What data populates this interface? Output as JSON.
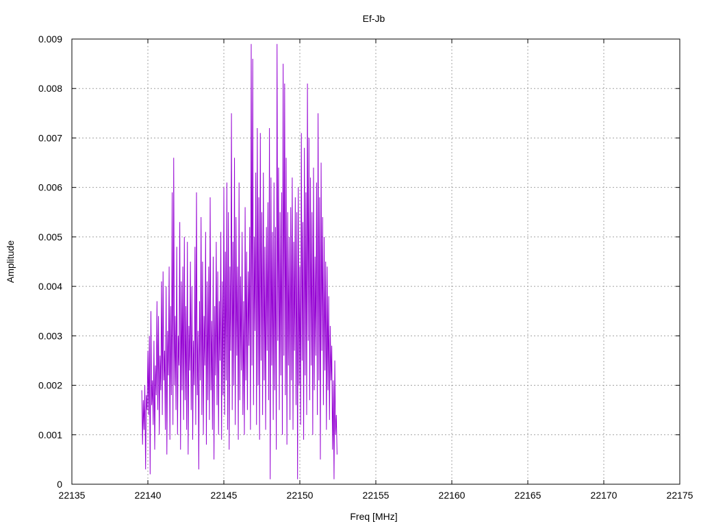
{
  "chart_data": {
    "type": "line",
    "title": "Ef-Jb",
    "xlabel": "Freq [MHz]",
    "ylabel": "Amplitude",
    "xlim": [
      22135,
      22175
    ],
    "ylim": [
      0,
      0.009
    ],
    "x_ticks": [
      "22135",
      "22140",
      "22145",
      "22150",
      "22155",
      "22160",
      "22165",
      "22170",
      "22175"
    ],
    "y_ticks": [
      "0",
      "0.001",
      "0.002",
      "0.003",
      "0.004",
      "0.005",
      "0.006",
      "0.007",
      "0.008",
      "0.009"
    ],
    "grid": true,
    "line_color": "#9400d3",
    "series": [
      {
        "x_start": 22139.6,
        "x_step": 0.05,
        "values": [
          0.0019,
          0.0008,
          0.0017,
          0.0011,
          0.002,
          0.0003,
          0.0018,
          0.0015,
          0.0027,
          0.0014,
          0.003,
          0.0002,
          0.0035,
          0.0016,
          0.0021,
          0.0012,
          0.0029,
          0.0007,
          0.0024,
          0.0018,
          0.0037,
          0.0015,
          0.0034,
          0.001,
          0.0026,
          0.0019,
          0.0041,
          0.0014,
          0.0043,
          0.0021,
          0.0027,
          0.0011,
          0.004,
          0.0006,
          0.0031,
          0.0022,
          0.0044,
          0.0009,
          0.0036,
          0.0018,
          0.0059,
          0.0012,
          0.0066,
          0.002,
          0.0034,
          0.0015,
          0.0048,
          0.001,
          0.003,
          0.0024,
          0.0053,
          0.0007,
          0.0041,
          0.0019,
          0.0044,
          0.0013,
          0.005,
          0.0017,
          0.0036,
          0.0011,
          0.0049,
          0.0006,
          0.0032,
          0.0023,
          0.0045,
          0.0015,
          0.004,
          0.0009,
          0.0029,
          0.002,
          0.0048,
          0.0012,
          0.0059,
          0.0018,
          0.0031,
          0.0003,
          0.0037,
          0.0021,
          0.0054,
          0.0014,
          0.0045,
          0.001,
          0.0034,
          0.0024,
          0.0051,
          0.0008,
          0.0041,
          0.0017,
          0.0044,
          0.0013,
          0.0058,
          0.0019,
          0.0033,
          0.0011,
          0.0046,
          0.0005,
          0.0036,
          0.0022,
          0.0049,
          0.0016,
          0.0043,
          0.001,
          0.0037,
          0.0025,
          0.0051,
          0.0009,
          0.0041,
          0.0018,
          0.006,
          0.0014,
          0.0047,
          0.0021,
          0.0061,
          0.0011,
          0.0055,
          0.0007,
          0.0044,
          0.0027,
          0.0075,
          0.0015,
          0.0049,
          0.002,
          0.0066,
          0.0012,
          0.0054,
          0.0026,
          0.0044,
          0.0009,
          0.0061,
          0.0017,
          0.0042,
          0.0023,
          0.0051,
          0.0014,
          0.0037,
          0.001,
          0.0056,
          0.0021,
          0.0047,
          0.0015,
          0.0043,
          0.0028,
          0.0052,
          0.0011,
          0.0089,
          0.0024,
          0.0086,
          0.0016,
          0.005,
          0.0031,
          0.0063,
          0.0012,
          0.0072,
          0.002,
          0.0058,
          0.0009,
          0.0071,
          0.0025,
          0.0055,
          0.0014,
          0.0063,
          0.0021,
          0.0048,
          0.0011,
          0.0052,
          0.0027,
          0.0057,
          0.0017,
          0.0072,
          0.0001,
          0.0062,
          0.0024,
          0.0051,
          0.0013,
          0.0061,
          0.0019,
          0.0052,
          0.0007,
          0.0089,
          0.0029,
          0.0064,
          0.0015,
          0.0055,
          0.0022,
          0.0059,
          0.001,
          0.0085,
          0.0026,
          0.0081,
          0.0018,
          0.0066,
          0.0008,
          0.0055,
          0.0024,
          0.005,
          0.0013,
          0.0056,
          0.0021,
          0.0062,
          0.0011,
          0.0049,
          0.0027,
          0.0058,
          0.0016,
          0.0055,
          0.0001,
          0.006,
          0.002,
          0.0044,
          0.0012,
          0.0071,
          0.0025,
          0.0053,
          0.0009,
          0.0068,
          0.0022,
          0.0059,
          0.0014,
          0.0081,
          0.0029,
          0.007,
          0.0017,
          0.0062,
          0.0024,
          0.0055,
          0.001,
          0.0064,
          0.0019,
          0.0046,
          0.0026,
          0.0061,
          0.0014,
          0.0075,
          0.0021,
          0.0058,
          0.0005,
          0.0065,
          0.0027,
          0.0054,
          0.0016,
          0.005,
          0.0023,
          0.0045,
          0.0011,
          0.0044,
          0.0019,
          0.0038,
          0.0013,
          0.0032,
          0.0021,
          0.0028,
          0.0007,
          0.0021,
          0.0001,
          0.0025,
          0.001,
          0.0014,
          0.0006
        ]
      }
    ]
  }
}
